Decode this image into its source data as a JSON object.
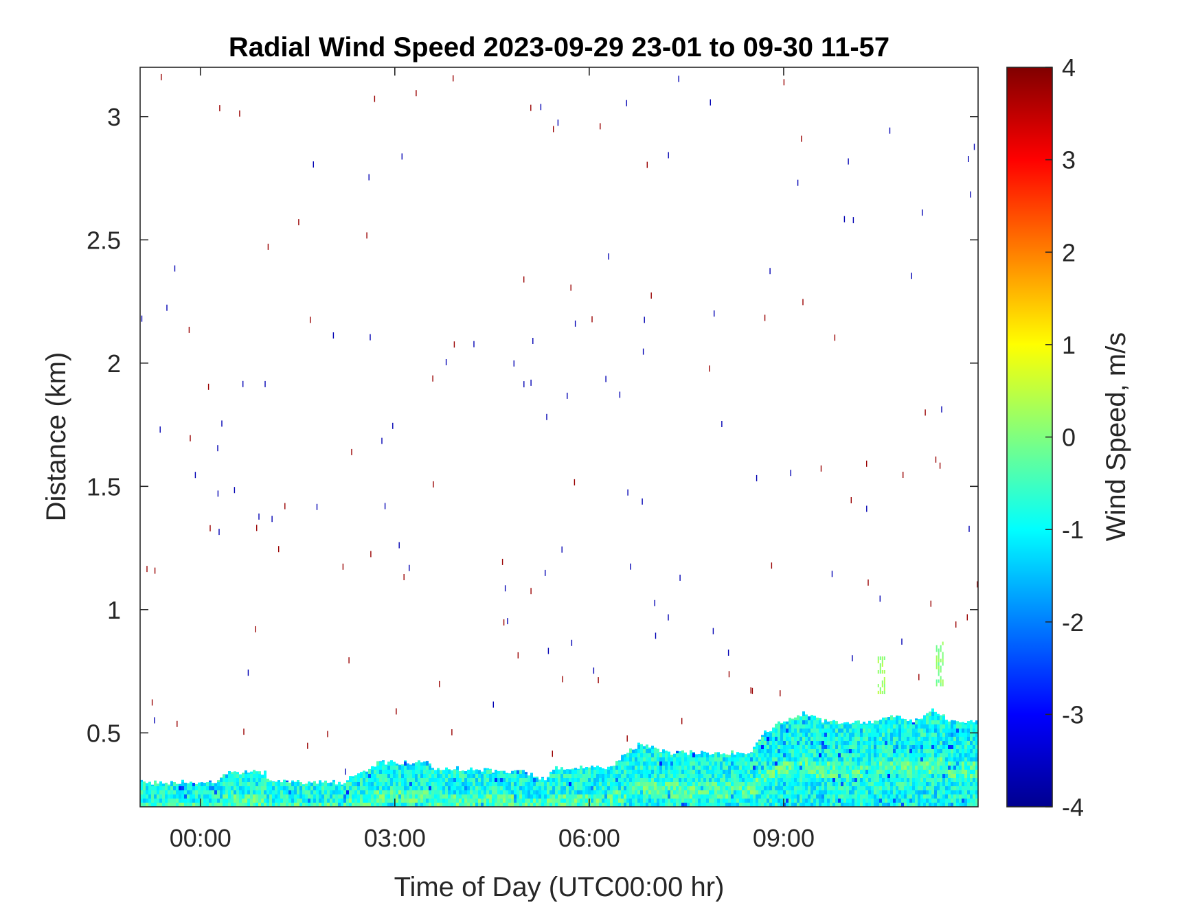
{
  "chart_data": {
    "type": "heatmap",
    "title": "Radial Wind Speed 2023-09-29 23-01 to 09-30 11-57",
    "xlabel": "Time of Day (UTC00:00 hr)",
    "ylabel": "Distance (km)",
    "colorbar_label": "Wind Speed, m/s",
    "xlim": [
      -0.93,
      12.0
    ],
    "ylim": [
      0.2,
      3.2
    ],
    "clim": [
      -4,
      4
    ],
    "colormap": "jet",
    "grid": false,
    "x_ticks": [
      {
        "value": 0,
        "label": "00:00"
      },
      {
        "value": 3,
        "label": "03:00"
      },
      {
        "value": 6,
        "label": "06:00"
      },
      {
        "value": 9,
        "label": "09:00"
      }
    ],
    "y_ticks": [
      {
        "value": 0.5,
        "label": "0.5"
      },
      {
        "value": 1.0,
        "label": "1"
      },
      {
        "value": 1.5,
        "label": "1.5"
      },
      {
        "value": 2.0,
        "label": "2"
      },
      {
        "value": 2.5,
        "label": "2.5"
      },
      {
        "value": 3.0,
        "label": "3"
      }
    ],
    "colorbar_ticks": [
      {
        "value": 4,
        "label": "4"
      },
      {
        "value": 3,
        "label": "3"
      },
      {
        "value": 2,
        "label": "2"
      },
      {
        "value": 1,
        "label": "1"
      },
      {
        "value": 0,
        "label": "0"
      },
      {
        "value": -1,
        "label": "-1"
      },
      {
        "value": -2,
        "label": "-2"
      },
      {
        "value": -3,
        "label": "-3"
      },
      {
        "value": -4,
        "label": "-4"
      }
    ],
    "boundary_layer_top_km": [
      {
        "t": -0.93,
        "h": 0.3
      },
      {
        "t": 0.3,
        "h": 0.3
      },
      {
        "t": 0.35,
        "h": 0.34
      },
      {
        "t": 1.0,
        "h": 0.34
      },
      {
        "t": 1.05,
        "h": 0.3
      },
      {
        "t": 2.2,
        "h": 0.3
      },
      {
        "t": 2.5,
        "h": 0.34
      },
      {
        "t": 2.75,
        "h": 0.38
      },
      {
        "t": 3.5,
        "h": 0.38
      },
      {
        "t": 3.6,
        "h": 0.36
      },
      {
        "t": 5.0,
        "h": 0.34
      },
      {
        "t": 5.3,
        "h": 0.31
      },
      {
        "t": 5.5,
        "h": 0.36
      },
      {
        "t": 6.3,
        "h": 0.36
      },
      {
        "t": 6.5,
        "h": 0.4
      },
      {
        "t": 6.8,
        "h": 0.46
      },
      {
        "t": 7.2,
        "h": 0.42
      },
      {
        "t": 8.5,
        "h": 0.42
      },
      {
        "t": 8.7,
        "h": 0.5
      },
      {
        "t": 9.0,
        "h": 0.55
      },
      {
        "t": 9.3,
        "h": 0.58
      },
      {
        "t": 9.6,
        "h": 0.55
      },
      {
        "t": 10.3,
        "h": 0.54
      },
      {
        "t": 10.6,
        "h": 0.57
      },
      {
        "t": 11.0,
        "h": 0.55
      },
      {
        "t": 11.3,
        "h": 0.59
      },
      {
        "t": 11.6,
        "h": 0.55
      },
      {
        "t": 12.0,
        "h": 0.55
      }
    ],
    "isolated_patches": [
      {
        "t_start": 10.45,
        "t_end": 10.55,
        "h_bottom": 0.66,
        "h_top": 0.81,
        "value": 0.2
      },
      {
        "t_start": 11.35,
        "t_end": 11.47,
        "h_bottom": 0.69,
        "h_top": 0.87,
        "value": 0.0
      }
    ]
  }
}
